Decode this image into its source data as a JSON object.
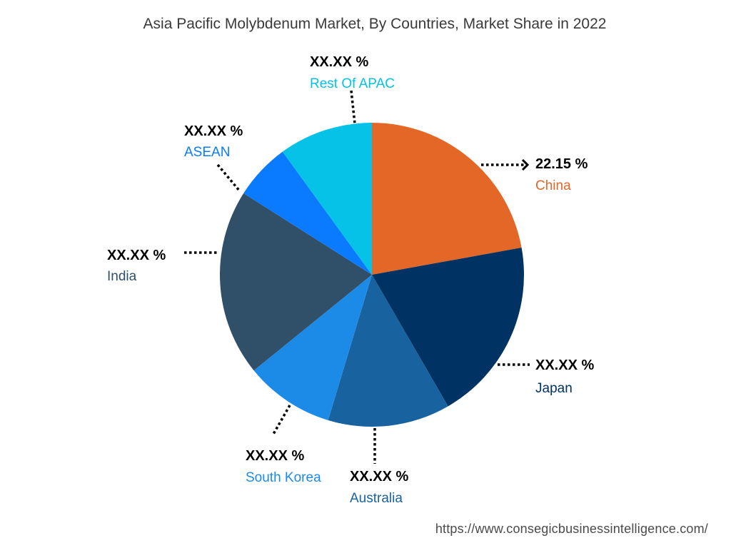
{
  "chart_data": {
    "type": "pie",
    "title": "Asia Pacific Molybdenum Market, By Countries, Market Share in 2022",
    "slices": [
      {
        "name": "China",
        "value_label": "22.15 %",
        "value": 22.15,
        "color": "#E36726"
      },
      {
        "name": "Japan",
        "value_label": "XX.XX %",
        "value": 19.5,
        "color": "#003263"
      },
      {
        "name": "Australia",
        "value_label": "XX.XX %",
        "value": 13.0,
        "color": "#18629F"
      },
      {
        "name": "South Korea",
        "value_label": "XX.XX %",
        "value": 9.5,
        "color": "#1C8BE7"
      },
      {
        "name": "India",
        "value_label": "XX.XX %",
        "value": 19.85,
        "color": "#304F69"
      },
      {
        "name": "ASEAN",
        "value_label": "XX.XX %",
        "value": 6.0,
        "color": "#0A7BFF"
      },
      {
        "name": "Rest Of APAC",
        "value_label": "XX.XX %",
        "value": 10.0,
        "color": "#05C2E6"
      }
    ]
  },
  "footer": {
    "source_url": "https://www.consegicbusinessintelligence.com/"
  }
}
